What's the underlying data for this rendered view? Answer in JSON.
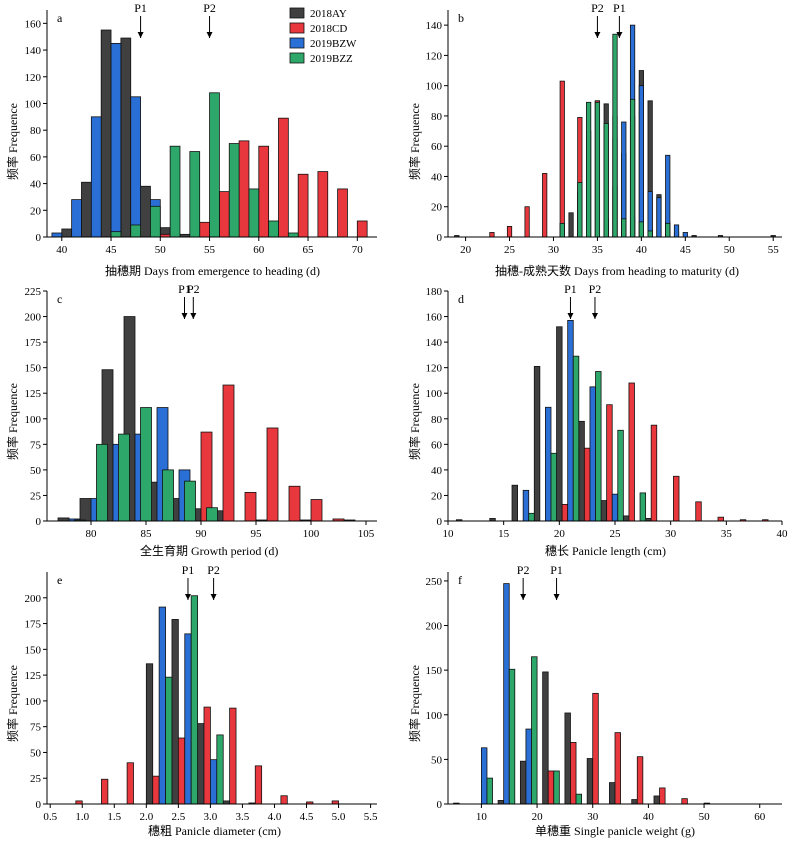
{
  "y_axis_label": "频率 Frequence",
  "legend": [
    {
      "name": "2018AY",
      "color": "#404040"
    },
    {
      "name": "2018CD",
      "color": "#e8383d"
    },
    {
      "name": "2019BZW",
      "color": "#2a6fd6"
    },
    {
      "name": "2019BZZ",
      "color": "#2ea86a"
    }
  ],
  "chart_data": [
    {
      "type": "bar",
      "letter": "a",
      "xlabel": "抽穗期 Days from emergence to heading (d)",
      "ylabel": "频率 Frequence",
      "xlim": [
        38.5,
        72
      ],
      "ylim": [
        0,
        170
      ],
      "xticks": [
        40,
        45,
        50,
        55,
        60,
        65,
        70
      ],
      "yticks": [
        0,
        20,
        40,
        60,
        80,
        100,
        120,
        140,
        160
      ],
      "bin_width": 2,
      "markers": [
        {
          "label": "P1",
          "x": 48
        },
        {
          "label": "P2",
          "x": 55
        }
      ],
      "series": [
        {
          "name": "2018AY",
          "x": [
            40.5,
            42.5,
            44.5,
            46.5,
            48.5,
            50.5,
            52.5,
            54.5,
            56.5,
            58.5,
            60.5,
            62.5,
            64.5,
            66.5
          ],
          "values": [
            6,
            41,
            155,
            149,
            38,
            7,
            2,
            5,
            3,
            2,
            1,
            2,
            0,
            1
          ]
        },
        {
          "name": "2018CD",
          "x": [
            50.5,
            52.5,
            54.5,
            56.5,
            58.5,
            60.5,
            62.5,
            64.5,
            66.5,
            68.5,
            70.5
          ],
          "values": [
            2,
            0,
            11,
            34,
            72,
            68,
            89,
            47,
            49,
            36,
            12
          ]
        },
        {
          "name": "2019BZW",
          "x": [
            39.5,
            41.5,
            43.5,
            45.5,
            47.5,
            49.5
          ],
          "values": [
            3,
            28,
            90,
            145,
            105,
            28
          ]
        },
        {
          "name": "2019BZZ",
          "x": [
            45.5,
            47.5,
            49.5,
            51.5,
            53.5,
            55.5,
            57.5,
            59.5,
            61.5,
            63.5
          ],
          "values": [
            4,
            9,
            23,
            68,
            64,
            108,
            70,
            36,
            12,
            3
          ]
        }
      ]
    },
    {
      "type": "bar",
      "letter": "b",
      "xlabel": "抽穗-成熟天数 Days from heading to maturity (d)",
      "ylabel": "频率 Frequence",
      "xlim": [
        18,
        56
      ],
      "ylim": [
        0,
        150
      ],
      "xticks": [
        20,
        25,
        30,
        35,
        40,
        45,
        50,
        55
      ],
      "yticks": [
        0,
        20,
        40,
        60,
        80,
        100,
        120,
        140
      ],
      "bin_width": 1,
      "markers": [
        {
          "label": "P2",
          "x": 35
        },
        {
          "label": "P1",
          "x": 37.5
        }
      ],
      "series": [
        {
          "name": "2018AY",
          "x": [
            19,
            31,
            32,
            33,
            34,
            35,
            36,
            37,
            38,
            39,
            40,
            41,
            42,
            43,
            44,
            46,
            49,
            55
          ],
          "values": [
            1,
            9,
            16,
            30,
            70,
            90,
            88,
            65,
            55,
            80,
            110,
            90,
            28,
            10,
            3,
            1,
            1,
            1
          ]
        },
        {
          "name": "2018CD",
          "x": [
            23,
            25,
            27,
            29,
            31,
            33,
            35,
            37,
            39,
            41,
            43
          ],
          "values": [
            3,
            7,
            20,
            42,
            103,
            79,
            90,
            33,
            13,
            5,
            1
          ]
        },
        {
          "name": "2019BZW",
          "x": [
            36,
            37,
            38,
            39,
            40,
            41,
            42,
            43,
            44,
            45
          ],
          "values": [
            12,
            80,
            76,
            140,
            100,
            30,
            26,
            54,
            8,
            3
          ]
        },
        {
          "name": "2019BZZ",
          "x": [
            31,
            33,
            34,
            35,
            36,
            37,
            38,
            39,
            40,
            41,
            43
          ],
          "values": [
            9,
            36,
            89,
            89,
            75,
            134,
            12,
            91,
            10,
            4,
            9
          ]
        }
      ]
    },
    {
      "type": "bar",
      "letter": "c",
      "xlabel": "全生育期 Growth period (d)",
      "ylabel": "频率 Frequence",
      "xlim": [
        76,
        106
      ],
      "ylim": [
        0,
        225
      ],
      "xticks": [
        80,
        85,
        90,
        95,
        100,
        105
      ],
      "yticks": [
        0,
        25,
        50,
        75,
        100,
        125,
        150,
        175,
        200,
        225
      ],
      "bin_width": 2,
      "markers": [
        {
          "label": "P1",
          "x": 88.5
        },
        {
          "label": "P2",
          "x": 89.3
        }
      ],
      "series": [
        {
          "name": "2018AY",
          "x": [
            77.5,
            79.5,
            81.5,
            83.5,
            85.5,
            87.5,
            89.5,
            91.5,
            95.5,
            99.5,
            103.5
          ],
          "values": [
            3,
            22,
            148,
            200,
            38,
            22,
            12,
            10,
            1,
            1,
            1
          ]
        },
        {
          "name": "2018CD",
          "x": [
            88.5,
            90.5,
            92.5,
            94.5,
            96.5,
            98.5,
            100.5,
            102.5
          ],
          "values": [
            1,
            87,
            133,
            28,
            91,
            34,
            21,
            2
          ]
        },
        {
          "name": "2019BZW",
          "x": [
            78.5,
            80.5,
            82.5,
            84.5,
            86.5,
            88.5
          ],
          "values": [
            2,
            22,
            75,
            85,
            111,
            50
          ]
        },
        {
          "name": "2019BZZ",
          "x": [
            79,
            81,
            83,
            85,
            87,
            89,
            91
          ],
          "values": [
            1,
            75,
            85,
            111,
            50,
            39,
            13
          ]
        }
      ]
    },
    {
      "type": "bar",
      "letter": "d",
      "xlabel": "穗长 Panicle length (cm)",
      "ylabel": "频率 Frequence",
      "xlim": [
        10,
        40
      ],
      "ylim": [
        0,
        180
      ],
      "xticks": [
        10,
        15,
        20,
        25,
        30,
        35,
        40
      ],
      "yticks": [
        0,
        20,
        40,
        60,
        80,
        100,
        120,
        140,
        160,
        180
      ],
      "bin_width": 1,
      "markers": [
        {
          "label": "P1",
          "x": 21
        },
        {
          "label": "P2",
          "x": 23.2
        }
      ],
      "series": [
        {
          "name": "2018AY",
          "x": [
            11,
            14,
            16,
            18,
            20,
            22,
            24,
            26,
            28
          ],
          "values": [
            1,
            2,
            28,
            121,
            152,
            78,
            16,
            4,
            2
          ]
        },
        {
          "name": "2018CD",
          "x": [
            20.5,
            22.5,
            24.5,
            26.5,
            28.5,
            30.5,
            32.5,
            34.5,
            36.5,
            38.5
          ],
          "values": [
            13,
            57,
            91,
            108,
            75,
            35,
            15,
            3,
            1,
            1
          ]
        },
        {
          "name": "2019BZW",
          "x": [
            17,
            19,
            21,
            23,
            25
          ],
          "values": [
            24,
            89,
            157,
            105,
            21
          ]
        },
        {
          "name": "2019BZZ",
          "x": [
            17.5,
            19.5,
            21.5,
            23.5,
            25.5,
            27.5
          ],
          "values": [
            6,
            53,
            129,
            117,
            71,
            22
          ]
        }
      ]
    },
    {
      "type": "bar",
      "letter": "e",
      "xlabel": "穗粗 Panicle diameter (cm)",
      "ylabel": "频率 Frequence",
      "xlim": [
        0.45,
        5.6
      ],
      "ylim": [
        0,
        225
      ],
      "xticks": [
        "0.5",
        "1.0",
        "1.5",
        "2.0",
        "2.5",
        "3.0",
        "3.5",
        "4.0",
        "4.5",
        "5.0",
        "5.5"
      ],
      "yticks": [
        0,
        25,
        50,
        75,
        100,
        125,
        150,
        175,
        200
      ],
      "bin_width": 0.2,
      "markers": [
        {
          "label": "P1",
          "x": 2.65
        },
        {
          "label": "P2",
          "x": 3.05
        }
      ],
      "series": [
        {
          "name": "2018AY",
          "x": [
            2.05,
            2.45,
            2.85,
            3.25,
            3.65
          ],
          "values": [
            136,
            179,
            78,
            3,
            1
          ]
        },
        {
          "name": "2018CD",
          "x": [
            0.95,
            1.35,
            1.75,
            2.15,
            2.55,
            2.95,
            3.35,
            3.75,
            4.15,
            4.55,
            4.95
          ],
          "values": [
            3,
            24,
            40,
            27,
            64,
            94,
            93,
            37,
            8,
            2,
            3
          ]
        },
        {
          "name": "2019BZW",
          "x": [
            2.25,
            2.65,
            3.05
          ],
          "values": [
            191,
            165,
            43
          ]
        },
        {
          "name": "2019BZZ",
          "x": [
            2.35,
            2.75,
            3.15
          ],
          "values": [
            123,
            202,
            67
          ]
        }
      ]
    },
    {
      "type": "bar",
      "letter": "f",
      "xlabel": "单穗重 Single panicle weight (g)",
      "ylabel": "频率 Frequence",
      "xlim": [
        4,
        64
      ],
      "ylim": [
        0,
        260
      ],
      "xticks": [
        10,
        20,
        30,
        40,
        50,
        60
      ],
      "yticks": [
        0,
        50,
        100,
        150,
        200,
        250
      ],
      "bin_width": 2,
      "markers": [
        {
          "label": "P2",
          "x": 17.5
        },
        {
          "label": "P1",
          "x": 23.5
        }
      ],
      "series": [
        {
          "name": "2018AY",
          "x": [
            5.5,
            13.5,
            17.5,
            21.5,
            25.5,
            29.5,
            33.5,
            37.5,
            41.5
          ],
          "values": [
            1,
            4,
            48,
            148,
            102,
            51,
            24,
            5,
            9
          ]
        },
        {
          "name": "2018CD",
          "x": [
            18.5,
            22.5,
            26.5,
            30.5,
            34.5,
            38.5,
            42.5,
            46.5,
            50.5
          ],
          "values": [
            5,
            37,
            69,
            124,
            80,
            53,
            18,
            6,
            1
          ]
        },
        {
          "name": "2019BZW",
          "x": [
            10.5,
            14.5,
            18.5
          ],
          "values": [
            63,
            247,
            84
          ]
        },
        {
          "name": "2019BZZ",
          "x": [
            11.5,
            15.5,
            19.5,
            23.5,
            27.5
          ],
          "values": [
            29,
            151,
            165,
            37,
            11
          ]
        }
      ]
    }
  ]
}
